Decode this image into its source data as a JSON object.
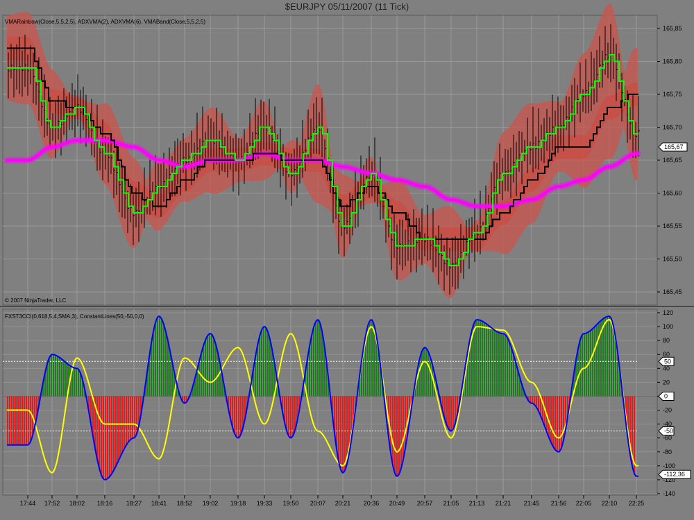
{
  "window": {
    "title": "$EURJPY  05/11/2007  (11 Tick)"
  },
  "price_panel": {
    "indicator_label": "VMARainbow(Close,5,5,2,5), ADXVMA(2), ADXVMA(6), VMABand(Close,5,5,2,5)",
    "copyright": "© 2007 NinjaTrader, LLC",
    "y_ticks": [
      "165,85",
      "165,80",
      "165,75",
      "165,70",
      "165,65",
      "165,60",
      "165,55",
      "165,50",
      "165,45"
    ],
    "last_price_marker": "165,67"
  },
  "osc_panel": {
    "indicator_label": "FXST3CCI(0,618,5,4,SMA,3), ConstantLines(50,-50,0,0)",
    "y_ticks": [
      "120",
      "100",
      "80",
      "60",
      "40",
      "20",
      "0",
      "-20",
      "-40",
      "-60",
      "-80",
      "-100",
      "-120",
      "-140"
    ],
    "markers": [
      "50",
      "0",
      "-50",
      "-112,36"
    ]
  },
  "x_axis": {
    "ticks": [
      "17:44",
      "17:52",
      "18:02",
      "18:16",
      "18:27",
      "18:41",
      "18:52",
      "19:02",
      "19:18",
      "19:33",
      "19:50",
      "20:07",
      "20:21",
      "20:36",
      "20:49",
      "20:57",
      "21:05",
      "21:13",
      "21:21",
      "21:45",
      "21:56",
      "22:05",
      "22:10",
      "22:25"
    ]
  },
  "colors": {
    "background": "#808080",
    "grid": "#9a9a9a",
    "band": "#c8564f",
    "rainbow": "#ff00ff",
    "adxvma2": "#00ff00",
    "adxvma6": "#000000",
    "cci": "#0000ff",
    "cci_signal": "#ffff00",
    "hist_up": "#007f00",
    "hist_down": "#ff0000"
  },
  "chart_data": [
    {
      "type": "line",
      "title": "$EURJPY  05/11/2007  (11 Tick)",
      "ylim": [
        165.43,
        165.87
      ],
      "x": [
        "17:44",
        "17:52",
        "18:02",
        "18:16",
        "18:27",
        "18:41",
        "18:52",
        "19:02",
        "19:18",
        "19:33",
        "19:50",
        "20:07",
        "20:21",
        "20:36",
        "20:49",
        "20:57",
        "21:05",
        "21:13",
        "21:21",
        "21:45",
        "21:56",
        "22:05",
        "22:10",
        "22:25"
      ],
      "series": [
        {
          "name": "ADXVMA(2)",
          "values": [
            165.79,
            165.7,
            165.73,
            165.66,
            165.57,
            165.61,
            165.65,
            165.68,
            165.65,
            165.7,
            165.63,
            165.7,
            165.55,
            165.63,
            165.52,
            165.53,
            165.49,
            165.54,
            165.63,
            165.67,
            165.7,
            165.75,
            165.81,
            165.69
          ]
        },
        {
          "name": "ADXVMA(6)",
          "values": [
            165.82,
            165.74,
            165.73,
            165.69,
            165.6,
            165.58,
            165.62,
            165.65,
            165.65,
            165.66,
            165.65,
            165.65,
            165.58,
            165.61,
            165.57,
            165.53,
            165.53,
            165.53,
            165.57,
            165.62,
            165.67,
            165.67,
            165.73,
            165.75
          ]
        },
        {
          "name": "VMARainbow",
          "values": [
            165.65,
            165.67,
            165.68,
            165.68,
            165.67,
            165.65,
            165.64,
            165.65,
            165.65,
            165.66,
            165.65,
            165.65,
            165.64,
            165.63,
            165.62,
            165.61,
            165.59,
            165.58,
            165.58,
            165.59,
            165.61,
            165.62,
            165.64,
            165.66
          ]
        }
      ]
    },
    {
      "type": "line",
      "ylim": [
        -140,
        125
      ],
      "x": [
        "17:44",
        "17:52",
        "18:02",
        "18:16",
        "18:27",
        "18:41",
        "18:52",
        "19:02",
        "19:18",
        "19:33",
        "19:50",
        "20:07",
        "20:21",
        "20:36",
        "20:49",
        "20:57",
        "21:05",
        "21:13",
        "21:21",
        "21:45",
        "21:56",
        "22:05",
        "22:10",
        "22:25"
      ],
      "series": [
        {
          "name": "FXST3CCI",
          "values": [
            -70,
            60,
            40,
            -120,
            -60,
            115,
            -10,
            90,
            -60,
            100,
            -60,
            110,
            -110,
            110,
            -115,
            70,
            -50,
            110,
            90,
            -10,
            -80,
            90,
            115,
            -115
          ]
        },
        {
          "name": "Signal",
          "values": [
            -20,
            -110,
            55,
            -40,
            -40,
            -90,
            55,
            20,
            70,
            -40,
            90,
            -50,
            -100,
            100,
            -80,
            50,
            -60,
            100,
            95,
            20,
            -60,
            40,
            110,
            -100
          ]
        }
      ],
      "reference_lines": [
        50,
        0,
        -50
      ]
    }
  ]
}
